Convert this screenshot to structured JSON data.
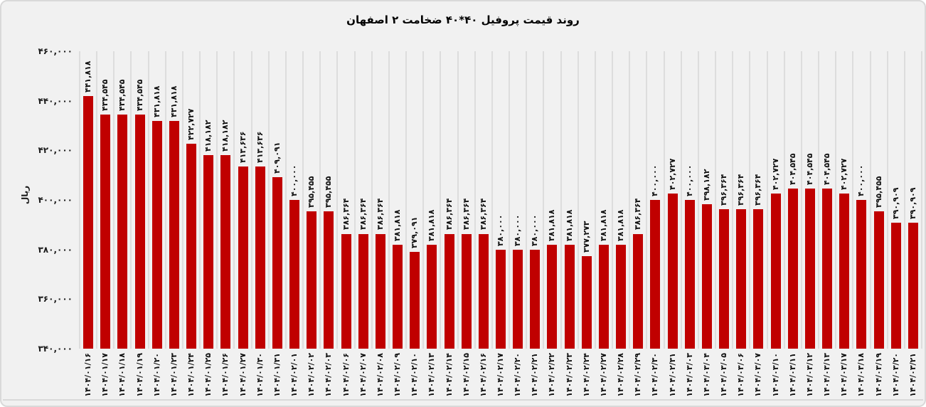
{
  "title": "روند قیمت پروفیل ۴۰*۴۰ ضخامت ۲ اصفهان",
  "colors": {
    "background": "#f1f1f1",
    "border": "#d9d9d9",
    "gridline": "#dddddd",
    "bar": "#c00000",
    "text": "#111111"
  },
  "y_axis": {
    "label": "ریال",
    "min": 340000,
    "max": 460000,
    "ticks": [
      {
        "label": "۴۶۰,۰۰۰",
        "value": 460000
      },
      {
        "label": "۴۴۰,۰۰۰",
        "value": 440000
      },
      {
        "label": "۴۲۰,۰۰۰",
        "value": 420000
      },
      {
        "label": "۴۰۰,۰۰۰",
        "value": 400000
      },
      {
        "label": "۳۸۰,۰۰۰",
        "value": 380000
      },
      {
        "label": "۳۶۰,۰۰۰",
        "value": 360000
      },
      {
        "label": "۳۴۰,۰۰۰",
        "value": 340000
      }
    ]
  },
  "chart_data": {
    "type": "bar",
    "title": "روند قیمت پروفیل ۴۰*۴۰ ضخامت ۲ اصفهان",
    "xlabel": "",
    "ylabel": "ریال",
    "ylim": [
      340000,
      460000
    ],
    "grid": "vertical-category-separators-only",
    "legend": "none",
    "bar_color": "#c00000",
    "points": [
      {
        "date": "۱۴۰۴/۰۱/۱۶",
        "value": 441818,
        "label": "۴۴۱,۸۱۸"
      },
      {
        "date": "۱۴۰۴/۰۱/۱۷",
        "value": 434545,
        "label": "۴۳۴,۵۴۵"
      },
      {
        "date": "۱۴۰۴/۰۱/۱۸",
        "value": 434545,
        "label": "۴۳۴,۵۴۵"
      },
      {
        "date": "۱۴۰۴/۰۱/۱۹",
        "value": 434545,
        "label": "۴۳۴,۵۴۵"
      },
      {
        "date": "۱۴۰۴/۰۱/۲۰",
        "value": 431818,
        "label": "۴۳۱,۸۱۸"
      },
      {
        "date": "۱۴۰۴/۰۱/۲۳",
        "value": 431818,
        "label": "۴۳۱,۸۱۸"
      },
      {
        "date": "۱۴۰۴/۰۱/۲۴",
        "value": 422727,
        "label": "۴۲۲,۷۲۷"
      },
      {
        "date": "۱۴۰۴/۰۱/۲۵",
        "value": 418182,
        "label": "۴۱۸,۱۸۲"
      },
      {
        "date": "۱۴۰۴/۰۱/۲۶",
        "value": 418182,
        "label": "۴۱۸,۱۸۲"
      },
      {
        "date": "۱۴۰۴/۰۱/۲۷",
        "value": 413636,
        "label": "۴۱۳,۶۳۶"
      },
      {
        "date": "۱۴۰۴/۰۱/۳۰",
        "value": 413636,
        "label": "۴۱۳,۶۳۶"
      },
      {
        "date": "۱۴۰۴/۰۱/۳۱",
        "value": 409091,
        "label": "۴۰۹,۰۹۱"
      },
      {
        "date": "۱۴۰۴/۰۲/۰۱",
        "value": 400000,
        "label": "۴۰۰,۰۰۰"
      },
      {
        "date": "۱۴۰۴/۰۲/۰۲",
        "value": 395455,
        "label": "۳۹۵,۴۵۵"
      },
      {
        "date": "۱۴۰۴/۰۲/۰۳",
        "value": 395455,
        "label": "۳۹۵,۴۵۵"
      },
      {
        "date": "۱۴۰۴/۰۲/۰۶",
        "value": 386364,
        "label": "۳۸۶,۳۶۴"
      },
      {
        "date": "۱۴۰۴/۰۲/۰۷",
        "value": 386364,
        "label": "۳۸۶,۳۶۴"
      },
      {
        "date": "۱۴۰۴/۰۲/۰۸",
        "value": 386364,
        "label": "۳۸۶,۳۶۴"
      },
      {
        "date": "۱۴۰۴/۰۲/۰۹",
        "value": 381818,
        "label": "۳۸۱,۸۱۸"
      },
      {
        "date": "۱۴۰۴/۰۲/۱۰",
        "value": 379091,
        "label": "۳۷۹,۰۹۱"
      },
      {
        "date": "۱۴۰۴/۰۲/۱۳",
        "value": 381818,
        "label": "۳۸۱,۸۱۸"
      },
      {
        "date": "۱۴۰۴/۰۲/۱۴",
        "value": 386364,
        "label": "۳۸۶,۳۶۴"
      },
      {
        "date": "۱۴۰۴/۰۲/۱۵",
        "value": 386364,
        "label": "۳۸۶,۳۶۴"
      },
      {
        "date": "۱۴۰۴/۰۲/۱۶",
        "value": 386364,
        "label": "۳۸۶,۳۶۴"
      },
      {
        "date": "۱۴۰۴/۰۲/۱۷",
        "value": 380000,
        "label": "۳۸۰,۰۰۰"
      },
      {
        "date": "۱۴۰۴/۰۲/۲۰",
        "value": 380000,
        "label": "۳۸۰,۰۰۰"
      },
      {
        "date": "۱۴۰۴/۰۲/۲۱",
        "value": 380000,
        "label": "۳۸۰,۰۰۰"
      },
      {
        "date": "۱۴۰۴/۰۲/۲۲",
        "value": 381818,
        "label": "۳۸۱,۸۱۸"
      },
      {
        "date": "۱۴۰۴/۰۲/۲۳",
        "value": 381818,
        "label": "۳۸۱,۸۱۸"
      },
      {
        "date": "۱۴۰۴/۰۲/۲۴",
        "value": 377273,
        "label": "۳۷۷,۲۷۳"
      },
      {
        "date": "۱۴۰۴/۰۲/۲۷",
        "value": 381818,
        "label": "۳۸۱,۸۱۸"
      },
      {
        "date": "۱۴۰۴/۰۲/۲۸",
        "value": 381818,
        "label": "۳۸۱,۸۱۸"
      },
      {
        "date": "۱۴۰۴/۰۲/۲۹",
        "value": 386364,
        "label": "۳۸۶,۳۶۴"
      },
      {
        "date": "۱۴۰۴/۰۲/۳۰",
        "value": 400000,
        "label": "۴۰۰,۰۰۰"
      },
      {
        "date": "۱۴۰۴/۰۲/۳۱",
        "value": 402727,
        "label": "۴۰۲,۷۲۷"
      },
      {
        "date": "۱۴۰۴/۰۳/۰۳",
        "value": 400000,
        "label": "۴۰۰,۰۰۰"
      },
      {
        "date": "۱۴۰۴/۰۳/۰۴",
        "value": 398182,
        "label": "۳۹۸,۱۸۲"
      },
      {
        "date": "۱۴۰۴/۰۳/۰۵",
        "value": 396364,
        "label": "۳۹۶,۳۶۴"
      },
      {
        "date": "۱۴۰۴/۰۳/۰۶",
        "value": 396364,
        "label": "۳۹۶,۳۶۴"
      },
      {
        "date": "۱۴۰۴/۰۳/۰۷",
        "value": 396364,
        "label": "۳۹۶,۳۶۴"
      },
      {
        "date": "۱۴۰۴/۰۳/۱۰",
        "value": 402727,
        "label": "۴۰۲,۷۲۷"
      },
      {
        "date": "۱۴۰۴/۰۳/۱۱",
        "value": 404545,
        "label": "۴۰۴,۵۴۵"
      },
      {
        "date": "۱۴۰۴/۰۳/۱۲",
        "value": 404545,
        "label": "۴۰۴,۵۴۵"
      },
      {
        "date": "۱۴۰۴/۰۳/۱۳",
        "value": 404545,
        "label": "۴۰۴,۵۴۵"
      },
      {
        "date": "۱۴۰۴/۰۳/۱۷",
        "value": 402727,
        "label": "۴۰۲,۷۲۷"
      },
      {
        "date": "۱۴۰۴/۰۳/۱۸",
        "value": 400000,
        "label": "۴۰۰,۰۰۰"
      },
      {
        "date": "۱۴۰۴/۰۳/۱۹",
        "value": 395455,
        "label": "۳۹۵,۴۵۵"
      },
      {
        "date": "۱۴۰۴/۰۳/۲۰",
        "value": 390909,
        "label": "۳۹۰,۹۰۹"
      },
      {
        "date": "۱۴۰۴/۰۳/۲۱",
        "value": 390909,
        "label": "۳۹۰,۹۰۹"
      }
    ]
  }
}
